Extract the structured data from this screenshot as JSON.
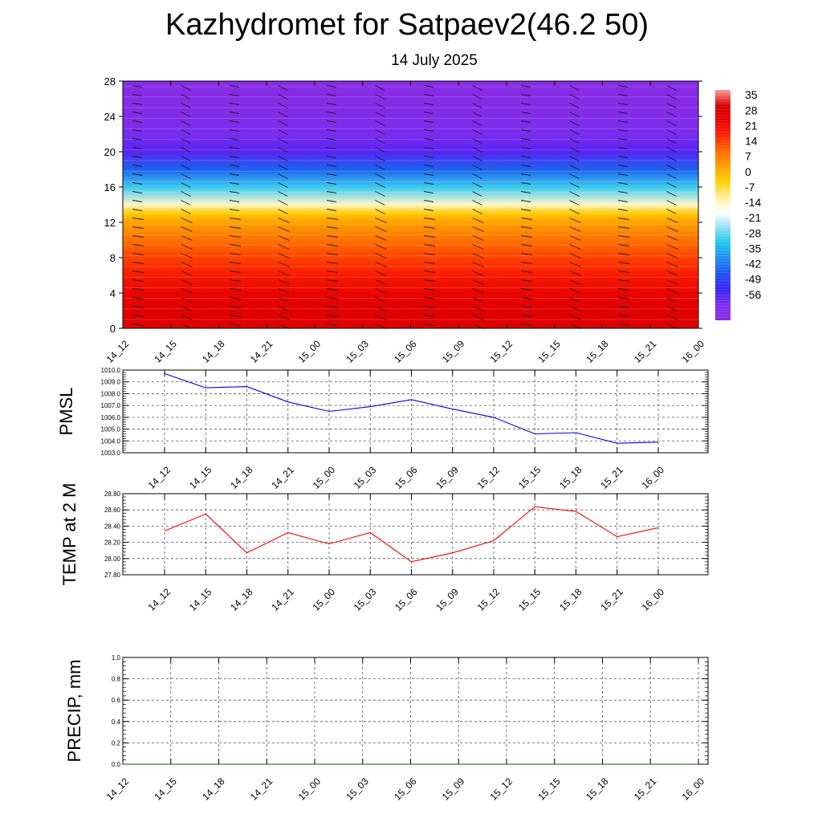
{
  "title": "Kazhydromet for Satpaev2(46.2 50)",
  "subtitle": "14 July 2025",
  "time_labels": [
    "14_12",
    "14_15",
    "14_18",
    "14_21",
    "15_00",
    "15_03",
    "15_06",
    "15_09",
    "15_12",
    "15_15",
    "15_18",
    "15_21",
    "16_00"
  ],
  "colors": {
    "pmsl_line": "#0000ff",
    "temp_line": "#ff0000",
    "precip_line": "#006400",
    "grid": "#555555"
  },
  "chart_data": [
    {
      "type": "heatmap",
      "title": "",
      "xlabel": "",
      "ylabel": "",
      "x_categories": [
        "14_12",
        "14_15",
        "14_18",
        "14_21",
        "15_00",
        "15_03",
        "15_06",
        "15_09",
        "15_12",
        "15_15",
        "15_18",
        "15_21",
        "16_00"
      ],
      "y_ticks": [
        0,
        4,
        8,
        12,
        16,
        20,
        24,
        28
      ],
      "ylim": [
        0,
        28
      ],
      "colorbar": {
        "labels": [
          "35",
          "28",
          "21",
          "14",
          "7",
          "0",
          "-7",
          "-14",
          "-21",
          "-28",
          "-35",
          "-42",
          "-49",
          "-56"
        ],
        "range": [
          -63,
          42
        ]
      },
      "profile": {
        "levels": [
          0,
          2,
          4,
          6,
          8,
          10,
          12,
          13,
          14,
          16,
          18,
          20,
          22,
          24,
          26,
          28
        ],
        "values": [
          31,
          30,
          27,
          23,
          18,
          13,
          7,
          1,
          -10,
          -26,
          -40,
          -52,
          -56,
          -60,
          -61,
          -62
        ]
      },
      "wind_barbs": true
    },
    {
      "type": "line",
      "title": "",
      "xlabel": "",
      "ylabel": "PMSL",
      "ylim": [
        1003.0,
        1010.0
      ],
      "y_ticks": [
        "1010.0",
        "1009.0",
        "1008.0",
        "1007.0",
        "1006.0",
        "1005.0",
        "1004.0",
        "1003.0"
      ],
      "categories": [
        "14_12",
        "14_15",
        "14_18",
        "14_21",
        "15_00",
        "15_03",
        "15_06",
        "15_09",
        "15_12",
        "15_15",
        "15_18",
        "15_21",
        "16_00"
      ],
      "values": [
        1009.7,
        1008.5,
        1008.6,
        1007.3,
        1006.5,
        1006.9,
        1007.5,
        1006.7,
        1006.0,
        1004.6,
        1004.7,
        1003.8,
        1003.9
      ],
      "grid": true
    },
    {
      "type": "line",
      "title": "",
      "xlabel": "",
      "ylabel": "TEMP at 2 M",
      "ylim": [
        27.8,
        28.8
      ],
      "y_ticks": [
        "28.80",
        "28.60",
        "28.40",
        "28.20",
        "28.00",
        "27.80"
      ],
      "categories": [
        "14_12",
        "14_15",
        "14_18",
        "14_21",
        "15_00",
        "15_03",
        "15_06",
        "15_09",
        "15_12",
        "15_15",
        "15_18",
        "15_21",
        "16_00"
      ],
      "values": [
        28.34,
        28.55,
        28.07,
        28.32,
        28.18,
        28.32,
        27.96,
        28.07,
        28.22,
        28.64,
        28.58,
        28.27,
        28.38
      ],
      "grid": true
    },
    {
      "type": "line",
      "title": "",
      "xlabel": "",
      "ylabel": "PRECIP, mm",
      "ylim": [
        0.0,
        1.0
      ],
      "y_ticks": [
        "1.0",
        "0.8",
        "0.6",
        "0.4",
        "0.2",
        "0.0"
      ],
      "categories": [
        "14_12",
        "14_15",
        "14_18",
        "14_21",
        "15_00",
        "15_03",
        "15_06",
        "15_09",
        "15_12",
        "15_15",
        "15_18",
        "15_21",
        "16_00"
      ],
      "values": [
        0,
        0,
        0,
        0,
        0,
        0,
        0,
        0,
        0,
        0,
        0,
        0,
        0
      ],
      "grid": true
    }
  ]
}
